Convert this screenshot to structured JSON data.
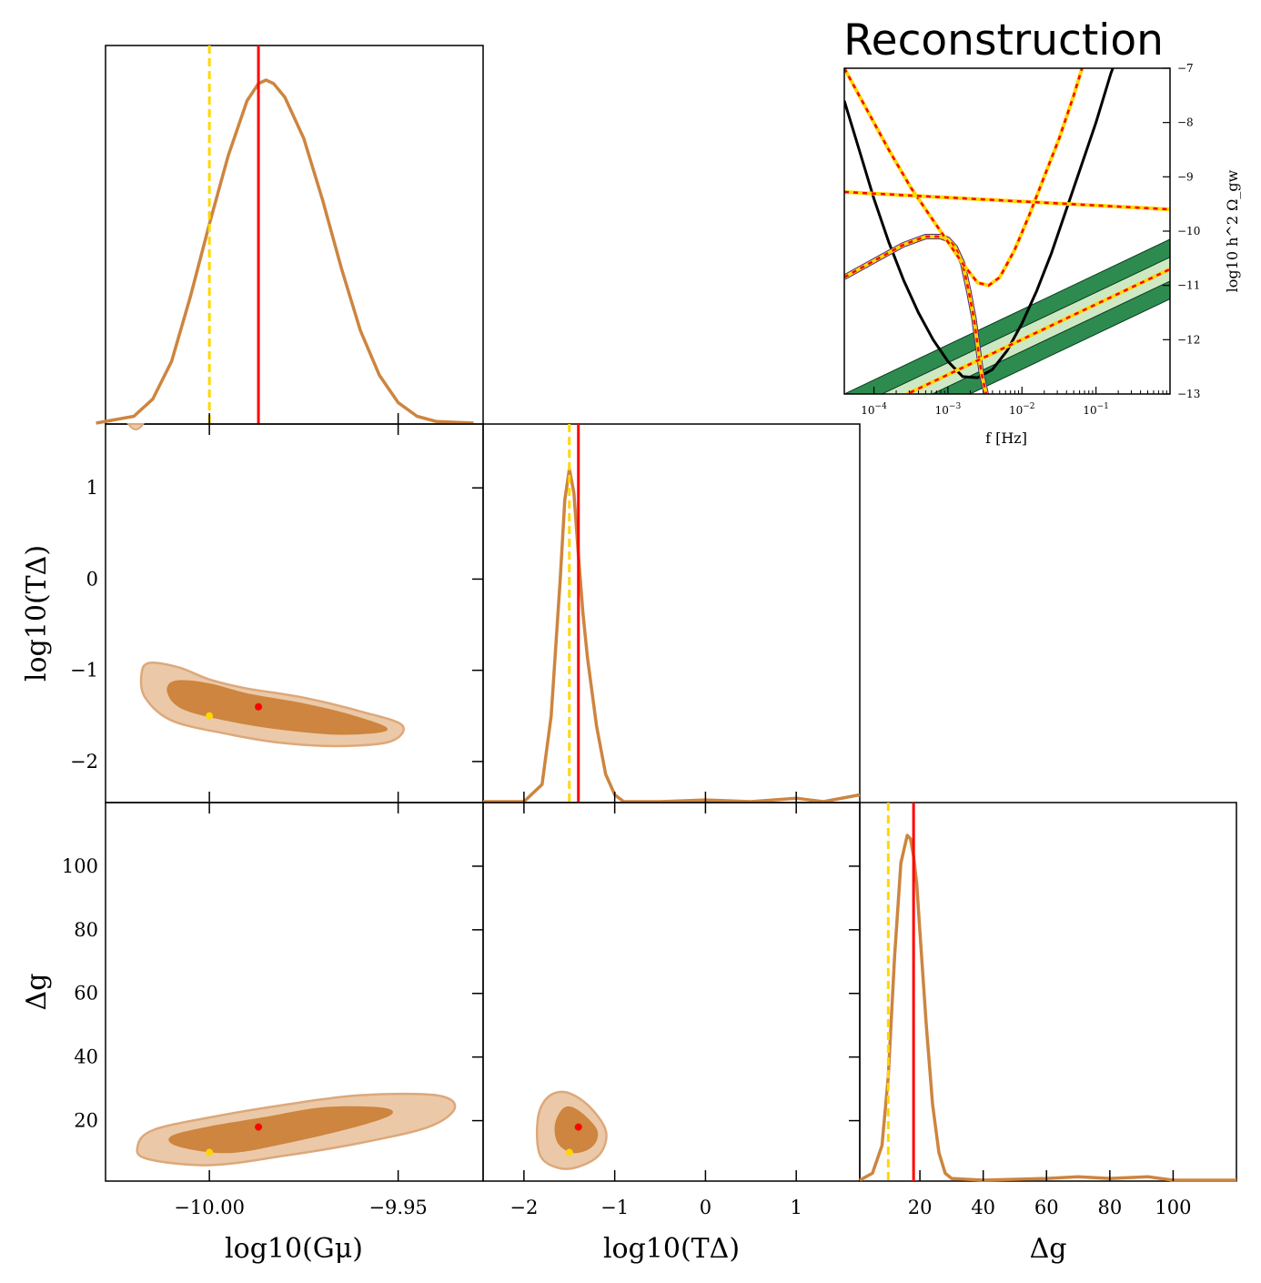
{
  "colors": {
    "posterior": "#CD853F",
    "posterior_fill_inner": "#CD853F",
    "posterior_fill_outer": "#EBC9A8",
    "truth": "#FF0000",
    "injection": "#FFD700",
    "sensitivity": "#000000",
    "band_dark": "#2E8B4F",
    "band_light": "#CFE8C4"
  },
  "chart_data": [
    {
      "type": "line",
      "panel": "marginal_Gmu",
      "xlim": [
        -10.0275,
        -9.9275
      ],
      "x": [
        -10.03,
        -10.02,
        -10.015,
        -10.01,
        -10.005,
        -10.0,
        -9.995,
        -9.99,
        -9.987,
        -9.985,
        -9.983,
        -9.98,
        -9.975,
        -9.97,
        -9.965,
        -9.96,
        -9.955,
        -9.95,
        -9.945,
        -9.94,
        -9.93
      ],
      "y": [
        0.0,
        0.02,
        0.07,
        0.18,
        0.37,
        0.58,
        0.78,
        0.94,
        0.99,
        1.0,
        0.99,
        0.95,
        0.83,
        0.65,
        0.45,
        0.27,
        0.14,
        0.06,
        0.02,
        0.005,
        0.0
      ],
      "truth": -9.987,
      "injection": -10.0
    },
    {
      "type": "line",
      "panel": "marginal_logTdelta",
      "xlim": [
        -2.45,
        1.7
      ],
      "x": [
        -2.45,
        -2.0,
        -1.8,
        -1.7,
        -1.6,
        -1.55,
        -1.5,
        -1.45,
        -1.4,
        -1.35,
        -1.3,
        -1.2,
        -1.1,
        -1.0,
        -0.9,
        -0.5,
        0.0,
        0.5,
        1.0,
        1.3,
        1.7
      ],
      "y": [
        0.0,
        0.0,
        0.05,
        0.25,
        0.65,
        0.88,
        0.97,
        0.9,
        0.72,
        0.55,
        0.42,
        0.22,
        0.08,
        0.02,
        0.0,
        0.0,
        0.005,
        0.0,
        0.01,
        0.0,
        0.02
      ],
      "truth": -1.4,
      "injection": -1.5
    },
    {
      "type": "line",
      "panel": "marginal_Deltag",
      "xlim": [
        1,
        120
      ],
      "x": [
        1,
        5,
        8,
        10,
        12,
        14,
        16,
        17,
        18,
        19,
        20,
        22,
        24,
        26,
        28,
        30,
        40,
        60,
        70,
        80,
        92,
        100,
        120
      ],
      "y": [
        0.0,
        0.02,
        0.1,
        0.3,
        0.65,
        0.92,
        1.0,
        0.99,
        0.94,
        0.86,
        0.72,
        0.45,
        0.22,
        0.08,
        0.02,
        0.005,
        0.0,
        0.005,
        0.01,
        0.005,
        0.01,
        0.0,
        0.0
      ],
      "truth": 18,
      "injection": 10
    },
    {
      "type": "contour",
      "panel": "Gmu_vs_logTdelta",
      "xlim": [
        -10.0275,
        -9.9275
      ],
      "ylim": [
        -2.45,
        1.7
      ],
      "truth": [
        -9.987,
        -1.4
      ],
      "injection": [
        -10.0,
        -1.5
      ],
      "outer": [
        [
          -10.016,
          -0.92
        ],
        [
          -10.008,
          -0.97
        ],
        [
          -10.0,
          -1.1
        ],
        [
          -9.99,
          -1.2
        ],
        [
          -9.975,
          -1.3
        ],
        [
          -9.96,
          -1.45
        ],
        [
          -9.949,
          -1.6
        ],
        [
          -9.952,
          -1.78
        ],
        [
          -9.965,
          -1.83
        ],
        [
          -9.98,
          -1.8
        ],
        [
          -9.995,
          -1.7
        ],
        [
          -10.01,
          -1.55
        ],
        [
          -10.017,
          -1.3
        ],
        [
          -10.018,
          -1.05
        ]
      ],
      "inner": [
        [
          -10.009,
          -1.12
        ],
        [
          -10.0,
          -1.15
        ],
        [
          -9.99,
          -1.26
        ],
        [
          -9.975,
          -1.37
        ],
        [
          -9.962,
          -1.5
        ],
        [
          -9.953,
          -1.65
        ],
        [
          -9.965,
          -1.7
        ],
        [
          -9.98,
          -1.65
        ],
        [
          -9.995,
          -1.55
        ],
        [
          -10.007,
          -1.42
        ],
        [
          -10.011,
          -1.24
        ]
      ],
      "edge_blob": [
        -10.0195,
        1.67
      ]
    },
    {
      "type": "contour",
      "panel": "Gmu_vs_Deltag",
      "xlim": [
        -10.0275,
        -9.9275
      ],
      "ylim": [
        1,
        120
      ],
      "truth": [
        -9.987,
        18
      ],
      "injection": [
        -10.0,
        10
      ],
      "outer": [
        [
          -10.0165,
          8
        ],
        [
          -10.0,
          6
        ],
        [
          -9.98,
          9
        ],
        [
          -9.96,
          13
        ],
        [
          -9.942,
          18
        ],
        [
          -9.935,
          24
        ],
        [
          -9.94,
          28
        ],
        [
          -9.96,
          28
        ],
        [
          -9.98,
          25
        ],
        [
          -10.0,
          21
        ],
        [
          -10.015,
          17
        ],
        [
          -10.019,
          12
        ]
      ],
      "inner": [
        [
          -10.008,
          12
        ],
        [
          -9.995,
          10
        ],
        [
          -9.98,
          13
        ],
        [
          -9.962,
          18
        ],
        [
          -9.952,
          22
        ],
        [
          -9.955,
          24
        ],
        [
          -9.97,
          24
        ],
        [
          -9.985,
          21
        ],
        [
          -10.0,
          18
        ],
        [
          -10.01,
          15
        ]
      ]
    },
    {
      "type": "contour",
      "panel": "logTdelta_vs_Deltag",
      "xlim": [
        -2.45,
        1.7
      ],
      "ylim": [
        1,
        120
      ],
      "truth": [
        -1.4,
        18
      ],
      "injection": [
        -1.5,
        10
      ],
      "outer": [
        [
          -1.85,
          20
        ],
        [
          -1.75,
          27
        ],
        [
          -1.55,
          29
        ],
        [
          -1.3,
          25
        ],
        [
          -1.1,
          17
        ],
        [
          -1.15,
          10
        ],
        [
          -1.35,
          6
        ],
        [
          -1.6,
          5
        ],
        [
          -1.82,
          9
        ]
      ],
      "inner": [
        [
          -1.65,
          19
        ],
        [
          -1.55,
          24
        ],
        [
          -1.4,
          23
        ],
        [
          -1.2,
          17
        ],
        [
          -1.25,
          12
        ],
        [
          -1.45,
          10
        ],
        [
          -1.62,
          13
        ]
      ]
    },
    {
      "type": "line",
      "panel": "reconstruction",
      "title": "Reconstruction",
      "xlabel": "f [Hz]",
      "ylabel": "log10 h^2 Ω_gw",
      "xscale": "log",
      "xlim": [
        -4.4,
        0.0
      ],
      "ylim": [
        -13,
        -7
      ],
      "xticks": [
        -4,
        -3,
        -2,
        -1
      ],
      "yticks": [
        -13,
        -12,
        -11,
        -10,
        -9,
        -8,
        -7
      ],
      "series": [
        {
          "role": "sensitivity",
          "x": [
            -4.4,
            -4.2,
            -4.0,
            -3.8,
            -3.6,
            -3.4,
            -3.2,
            -3.0,
            -2.8,
            -2.6,
            -2.4,
            -2.2,
            -2.0,
            -1.8,
            -1.6,
            -1.4,
            -1.2,
            -1.0,
            -0.8,
            -0.5
          ],
          "y": [
            -7.6,
            -8.5,
            -9.4,
            -10.2,
            -10.9,
            -11.5,
            -12.0,
            -12.4,
            -12.68,
            -12.7,
            -12.55,
            -12.2,
            -11.7,
            -11.1,
            -10.4,
            -9.6,
            -8.8,
            -8.0,
            -7.1,
            -6.0
          ]
        },
        {
          "role": "signal_peaked",
          "x": [
            -4.4,
            -4.0,
            -3.6,
            -3.3,
            -3.1,
            -3.0,
            -2.9,
            -2.8,
            -2.72,
            -2.65,
            -2.6,
            -2.55,
            -2.4,
            -2.2
          ],
          "y": [
            -10.85,
            -10.55,
            -10.25,
            -10.1,
            -10.1,
            -10.15,
            -10.3,
            -10.6,
            -11.1,
            -11.6,
            -12.1,
            -12.6,
            -13.5,
            -14.5
          ]
        },
        {
          "role": "signal_dip",
          "x": [
            -4.4,
            -4.1,
            -3.8,
            -3.5,
            -3.2,
            -3.0,
            -2.8,
            -2.6,
            -2.45,
            -2.3,
            -2.1,
            -1.9,
            -1.7,
            -1.5,
            -1.3,
            -1.1
          ],
          "y": [
            -7.0,
            -7.75,
            -8.5,
            -9.2,
            -9.8,
            -10.2,
            -10.6,
            -10.95,
            -11.0,
            -10.85,
            -10.35,
            -9.7,
            -9.0,
            -8.3,
            -7.5,
            -6.6
          ]
        },
        {
          "role": "signal_flat",
          "x": [
            -4.4,
            0.0
          ],
          "y": [
            -9.28,
            -9.6
          ]
        },
        {
          "role": "signal_rising",
          "x": [
            -4.4,
            0.0
          ],
          "y": [
            -13.55,
            -10.7
          ]
        },
        {
          "role": "band_outer_upper",
          "x": [
            -4.4,
            0.0
          ],
          "y": [
            -13.0,
            -10.15
          ]
        },
        {
          "role": "band_outer_lower",
          "x": [
            -4.4,
            0.0
          ],
          "y": [
            -14.1,
            -11.25
          ]
        },
        {
          "role": "band_inner_upper",
          "x": [
            -4.4,
            0.0
          ],
          "y": [
            -13.33,
            -10.48
          ]
        },
        {
          "role": "band_inner_lower",
          "x": [
            -4.4,
            0.0
          ],
          "y": [
            -13.77,
            -10.92
          ]
        }
      ]
    }
  ],
  "corner": {
    "ylabels": {
      "logTdelta": "log10(TΔ)",
      "Deltag": "Δg"
    },
    "xlabels": {
      "Gmu": "log10(Gμ)",
      "logTdelta": "log10(TΔ)",
      "Deltag": "Δg"
    },
    "ticks": {
      "Gmu": [
        -10.0,
        -9.95
      ],
      "Gmu_labels": [
        "−10.00",
        "−9.95"
      ],
      "logTdelta": [
        -2,
        -1,
        0,
        1
      ],
      "logTdelta_labels": [
        "−2",
        "−1",
        "0",
        "1"
      ],
      "Deltag": [
        20,
        40,
        60,
        80,
        100
      ],
      "Deltag_labels": [
        "20",
        "40",
        "60",
        "80",
        "100"
      ]
    }
  }
}
